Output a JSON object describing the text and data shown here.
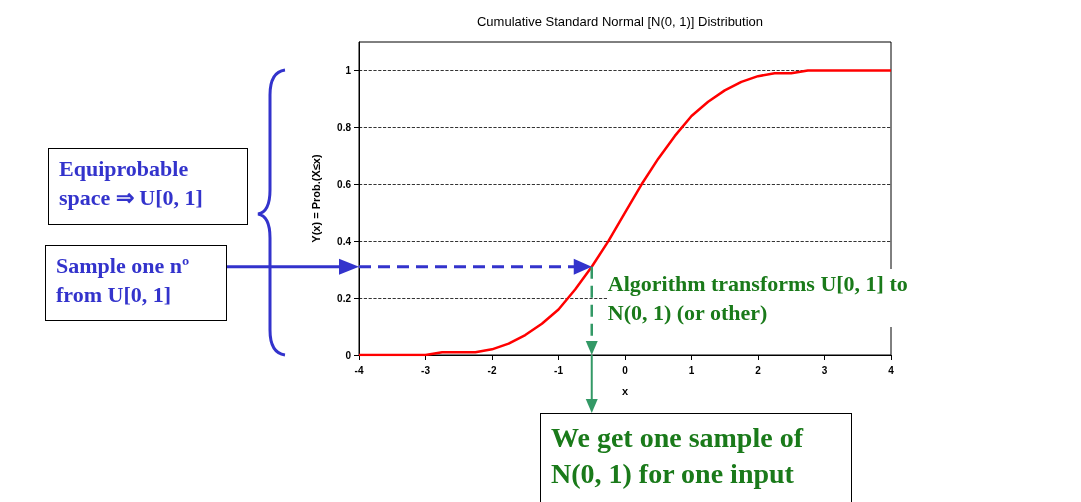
{
  "chart_data": {
    "type": "line",
    "title": "Cumulative Standard Normal [N(0, 1)] Distribution",
    "xlabel": "x",
    "ylabel": "Y(x) = Prob.(X≤x)",
    "x": [
      -4,
      -3.5,
      -3,
      -2.75,
      -2.5,
      -2.25,
      -2,
      -1.75,
      -1.5,
      -1.25,
      -1,
      -0.75,
      -0.5,
      -0.25,
      0,
      0.25,
      0.5,
      0.75,
      1,
      1.25,
      1.5,
      1.75,
      2,
      2.25,
      2.5,
      2.75,
      3,
      3.5,
      4
    ],
    "series": [
      {
        "color": "#ff0000",
        "values": [
          0,
          0,
          0,
          0.01,
          0.01,
          0.01,
          0.02,
          0.04,
          0.07,
          0.11,
          0.16,
          0.23,
          0.31,
          0.4,
          0.5,
          0.6,
          0.69,
          0.77,
          0.84,
          0.89,
          0.93,
          0.96,
          0.98,
          0.99,
          0.99,
          1,
          1,
          1,
          1
        ]
      }
    ],
    "xlim": [
      -4,
      4
    ],
    "xticks": [
      -4,
      -3,
      -2,
      -1,
      0,
      1,
      2,
      3,
      4
    ],
    "ylim": [
      0,
      1.1
    ],
    "yticks": [
      0,
      0.2,
      0.4,
      0.6,
      0.8,
      1
    ],
    "grid": "y",
    "marker": "none",
    "line_style": "solid",
    "ref_lines": [
      {
        "axis": "y",
        "value": 0.31,
        "color": "#3333cc",
        "line_style": "dashed"
      },
      {
        "axis": "x",
        "value": -0.5,
        "color": "#339966",
        "line_style": "dashed"
      }
    ],
    "annotations": [
      "Equiprobable space ⇒ U[0, 1]",
      "Sample one nº from U[0, 1]",
      {
        "text": "Algorithm transforms U[0, 1] to N(0, 1) (or other)",
        "x": -0.5,
        "y": 0.31
      },
      "We get one sample of N(0, 1) for one input"
    ]
  }
}
